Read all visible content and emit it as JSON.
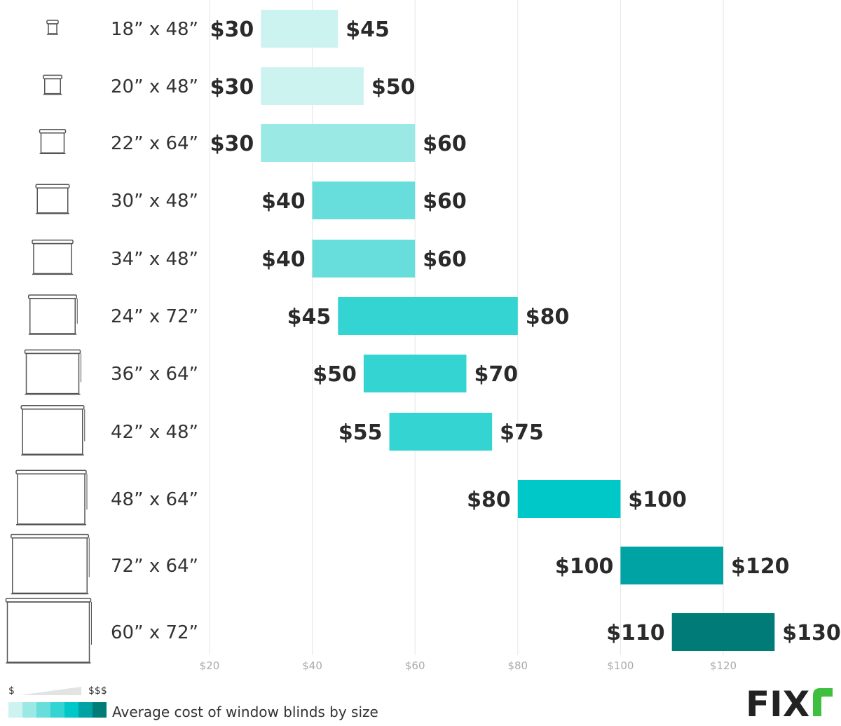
{
  "chart_data": {
    "type": "bar",
    "orientation": "horizontal-range",
    "title": "Average cost of window blinds by size",
    "categories": [
      "18” x 48”",
      "20” x 48”",
      "22” x 64”",
      "30” x 48”",
      "34” x 48”",
      "24” x 72”",
      "36” x 64”",
      "42” x 48”",
      "48” x 64”",
      "72” x 64”",
      "60” x 72”"
    ],
    "low": [
      30,
      30,
      30,
      40,
      40,
      45,
      50,
      55,
      80,
      100,
      110
    ],
    "high": [
      45,
      50,
      60,
      60,
      60,
      80,
      70,
      75,
      100,
      120,
      130
    ],
    "low_labels": [
      "$30",
      "$30",
      "$30",
      "$40",
      "$40",
      "$45",
      "$50",
      "$55",
      "$80",
      "$100",
      "$110"
    ],
    "high_labels": [
      "$45",
      "$50",
      "$60",
      "$60",
      "$60",
      "$80",
      "$70",
      "$75",
      "$100",
      "$120",
      "$130"
    ],
    "bar_colors": [
      "#cdf3f1",
      "#cdf3f1",
      "#9ae9e5",
      "#67dedb",
      "#67dedb",
      "#33d4d2",
      "#33d4d2",
      "#33d4d2",
      "#00c8c8",
      "#00a3a3",
      "#007b78"
    ],
    "xlim": [
      20,
      130
    ],
    "xticks": [
      20,
      40,
      60,
      80,
      100,
      120
    ],
    "xtick_labels": [
      "$20",
      "$40",
      "$60",
      "$80",
      "$100",
      "$120"
    ],
    "grid": true
  },
  "legend": {
    "low_symbol": "$",
    "high_symbol": "$$$",
    "caption": "Average cost of window blinds by size",
    "swatches": [
      "#cdf3f1",
      "#9ae9e5",
      "#67dedb",
      "#33d4d2",
      "#00c8c8",
      "#00a3a3",
      "#007b78"
    ]
  },
  "logo": {
    "text": "FIXr",
    "letters": "FIX",
    "accent_color": "#3fbf3f"
  },
  "icons": {
    "name": "window-blind-icon"
  }
}
